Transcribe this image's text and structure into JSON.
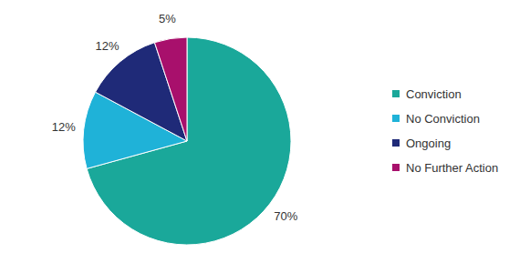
{
  "chart_data": {
    "type": "pie",
    "categories": [
      "Conviction",
      "No Conviction",
      "Ongoing",
      "No Further Action"
    ],
    "values": [
      70,
      12,
      12,
      5
    ],
    "value_labels": [
      "70%",
      "12%",
      "12%",
      "5%"
    ],
    "colors": [
      "#1aa89a",
      "#1fb2d8",
      "#1f2a78",
      "#a8106c"
    ],
    "data_labels": true,
    "legend": "right"
  }
}
